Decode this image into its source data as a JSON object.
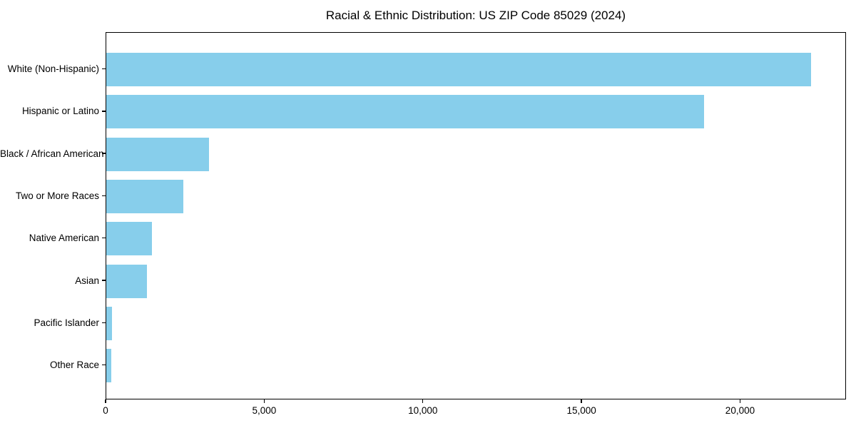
{
  "title": "Racial & Ethnic Distribution: US ZIP Code 85029 (2024)",
  "colors": {
    "bar": "#87CEEB",
    "axis": "#000000",
    "text": "#000000",
    "background": "#ffffff"
  },
  "chart_data": {
    "type": "bar",
    "orientation": "horizontal",
    "title": "Racial & Ethnic Distribution: US ZIP Code 85029 (2024)",
    "categories": [
      "White (Non-Hispanic)",
      "Hispanic or Latino",
      "Black / African American",
      "Two or More Races",
      "Native American",
      "Asian",
      "Pacific Islander",
      "Other Race"
    ],
    "values": [
      22220,
      18850,
      3230,
      2420,
      1430,
      1290,
      180,
      160
    ],
    "xlabel": "",
    "ylabel": "",
    "xlim": [
      0,
      23340
    ],
    "x_ticks": [
      0,
      5000,
      10000,
      15000,
      20000
    ],
    "x_tick_labels": [
      "0",
      "5,000",
      "10,000",
      "15,000",
      "20,000"
    ],
    "bar_color": "#87CEEB",
    "grid": false,
    "legend": null,
    "sort_order": "descending"
  }
}
